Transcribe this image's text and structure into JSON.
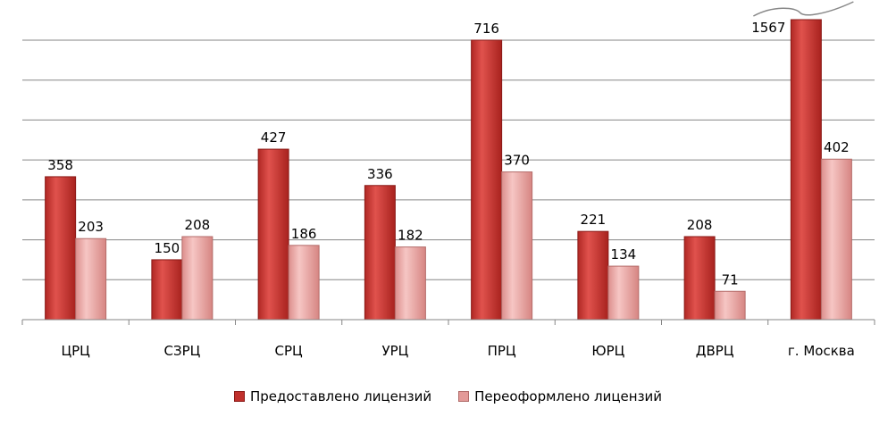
{
  "chart_data": {
    "type": "bar",
    "categories": [
      "ЦРЦ",
      "СЗРЦ",
      "СРЦ",
      "УРЦ",
      "ПРЦ",
      "ЮРЦ",
      "ДВРЦ",
      "г. Москва"
    ],
    "series": [
      {
        "name": "Предоставлено лицензий",
        "values": [
          358,
          150,
          427,
          336,
          716,
          221,
          208,
          1567
        ],
        "color": "#c0302c",
        "color_light": "#e06a66"
      },
      {
        "name": "Переоформлено лицензий",
        "values": [
          203,
          208,
          186,
          182,
          370,
          134,
          71,
          402
        ],
        "color": "#e39a98",
        "color_light": "#f7cfcd"
      }
    ],
    "ylim": [
      0,
      700
    ],
    "axis_break": {
      "category": "г. Москва",
      "series": "Предоставлено лицензий"
    },
    "gridlines": true,
    "grid_step": 100,
    "legend_position": "bottom",
    "title": "",
    "xlabel": "",
    "ylabel": ""
  }
}
